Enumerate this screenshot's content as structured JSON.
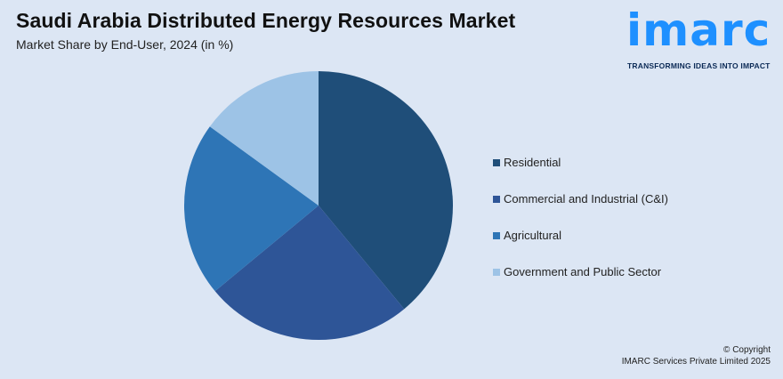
{
  "header": {
    "title": "Saudi Arabia Distributed Energy Resources Market",
    "subtitle": "Market Share by End-User, 2024 (in %)"
  },
  "logo": {
    "wordmark": "imarc",
    "tagline": "TRANSFORMING IDEAS INTO IMPACT"
  },
  "chart_data": {
    "type": "pie",
    "categories": [
      "Residential",
      "Commercial and Industrial (C&I)",
      "Agricultural",
      "Government and Public Sector"
    ],
    "values": [
      39,
      25,
      21,
      15
    ],
    "colors": [
      "#1f4e79",
      "#2e5597",
      "#2e75b6",
      "#9dc3e6"
    ],
    "legend_position": "right"
  },
  "footer": {
    "copyright_line1": "© Copyright",
    "copyright_line2": "IMARC Services Private Limited 2025"
  }
}
